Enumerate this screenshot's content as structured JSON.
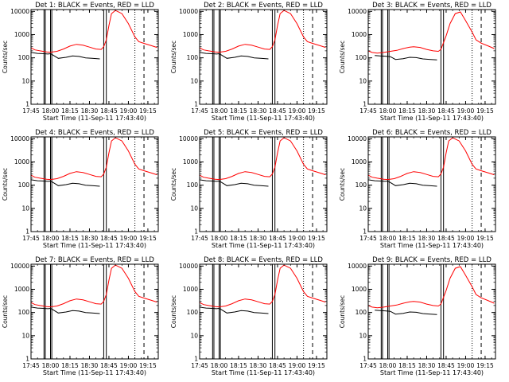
{
  "chart_data": {
    "type": "line",
    "layout": "3x3 grid",
    "y_scale": "log",
    "ylim": [
      1,
      12000
    ],
    "xlim": [
      "17:45",
      "19:23"
    ],
    "x_ticks": [
      "17:45",
      "18:00",
      "18:15",
      "18:30",
      "18:45",
      "19:00",
      "19:15"
    ],
    "y_ticks": [
      "1",
      "10",
      "100",
      "1000",
      "10000"
    ],
    "xlabel": "Start Time (11-Sep-11 17:43:40)",
    "ylabel": "Counts/sec",
    "series_colors": {
      "events": "#000000",
      "lld": "#ff0000"
    },
    "panels": [
      {
        "id": "1",
        "title": "Det 1: BLACK = Events, RED = LLD",
        "variant": "a"
      },
      {
        "id": "2",
        "title": "Det 2: BLACK = Events, RED = LLD",
        "variant": "a"
      },
      {
        "id": "3",
        "title": "Det 3: BLACK = Events, RED = LLD",
        "variant": "b"
      },
      {
        "id": "4",
        "title": "Det 4: BLACK = Events, RED = LLD",
        "variant": "a"
      },
      {
        "id": "5",
        "title": "Det 5: BLACK = Events, RED = LLD",
        "variant": "a"
      },
      {
        "id": "6",
        "title": "Det 6: BLACK = Events, RED = LLD",
        "variant": "a"
      },
      {
        "id": "7",
        "title": "Det 7: BLACK = Events, RED = LLD",
        "variant": "a"
      },
      {
        "id": "8",
        "title": "Det 8: BLACK = Events, RED = LLD",
        "variant": "a"
      },
      {
        "id": "9",
        "title": "Det 9: BLACK = Events, RED = LLD",
        "variant": "b"
      }
    ],
    "series": [
      {
        "name": "LLD",
        "color": "#ff0000",
        "profiles": {
          "a": [
            [
              "17:45",
              270
            ],
            [
              "17:48",
              220
            ],
            [
              "17:52",
              200
            ],
            [
              "17:57",
              180
            ],
            [
              "18:00",
              175
            ],
            [
              "18:05",
              190
            ],
            [
              "18:10",
              240
            ],
            [
              "18:15",
              320
            ],
            [
              "18:20",
              380
            ],
            [
              "18:25",
              350
            ],
            [
              "18:30",
              290
            ],
            [
              "18:35",
              240
            ],
            [
              "18:39",
              230
            ],
            [
              "18:41",
              300
            ],
            [
              "18:43",
              600
            ],
            [
              "18:45",
              2500
            ],
            [
              "18:47",
              8000
            ],
            [
              "18:50",
              11000
            ],
            [
              "18:55",
              8000
            ],
            [
              "19:00",
              3000
            ],
            [
              "19:05",
              800
            ],
            [
              "19:08",
              500
            ],
            [
              "19:12",
              420
            ],
            [
              "19:18",
              330
            ],
            [
              "19:22",
              280
            ]
          ],
          "b": [
            [
              "17:45",
              200
            ],
            [
              "17:48",
              170
            ],
            [
              "17:52",
              160
            ],
            [
              "17:57",
              170
            ],
            [
              "18:02",
              190
            ],
            [
              "18:07",
              210
            ],
            [
              "18:12",
              250
            ],
            [
              "18:17",
              290
            ],
            [
              "18:20",
              300
            ],
            [
              "18:25",
              280
            ],
            [
              "18:30",
              230
            ],
            [
              "18:35",
              200
            ],
            [
              "18:39",
              190
            ],
            [
              "18:41",
              230
            ],
            [
              "18:43",
              450
            ],
            [
              "18:45",
              900
            ],
            [
              "18:48",
              3000
            ],
            [
              "18:52",
              8000
            ],
            [
              "18:56",
              9500
            ],
            [
              "19:00",
              4000
            ],
            [
              "19:05",
              1300
            ],
            [
              "19:08",
              600
            ],
            [
              "19:12",
              430
            ],
            [
              "19:17",
              330
            ],
            [
              "19:22",
              250
            ]
          ]
        }
      },
      {
        "name": "Events",
        "color": "#000000",
        "profiles": {
          "a": [
            [
              "17:45",
              170
            ],
            [
              "17:50",
              155
            ],
            [
              "17:55",
              150
            ],
            [
              "17:58",
              145
            ],
            [
              "18:00",
              150
            ],
            [
              "18:02",
              130
            ],
            [
              "18:06",
              95
            ],
            [
              "18:12",
              105
            ],
            [
              "18:17",
              120
            ],
            [
              "18:22",
              115
            ],
            [
              "18:27",
              100
            ],
            [
              "18:32",
              95
            ],
            [
              "18:38",
              90
            ]
          ],
          "b": [
            [
              "17:50",
              125
            ],
            [
              "17:54",
              120
            ],
            [
              "17:58",
              118
            ],
            [
              "18:02",
              112
            ],
            [
              "18:06",
              85
            ],
            [
              "18:12",
              92
            ],
            [
              "18:17",
              105
            ],
            [
              "18:22",
              102
            ],
            [
              "18:27",
              90
            ],
            [
              "18:32",
              86
            ],
            [
              "18:38",
              82
            ]
          ]
        }
      }
    ],
    "vertical_markers": {
      "solid": [
        "17:55",
        "17:56",
        "18:00",
        "18:01",
        "18:41",
        "18:43"
      ],
      "dotted": [
        "19:05",
        "19:23"
      ],
      "dashed": [
        "19:12"
      ]
    }
  }
}
